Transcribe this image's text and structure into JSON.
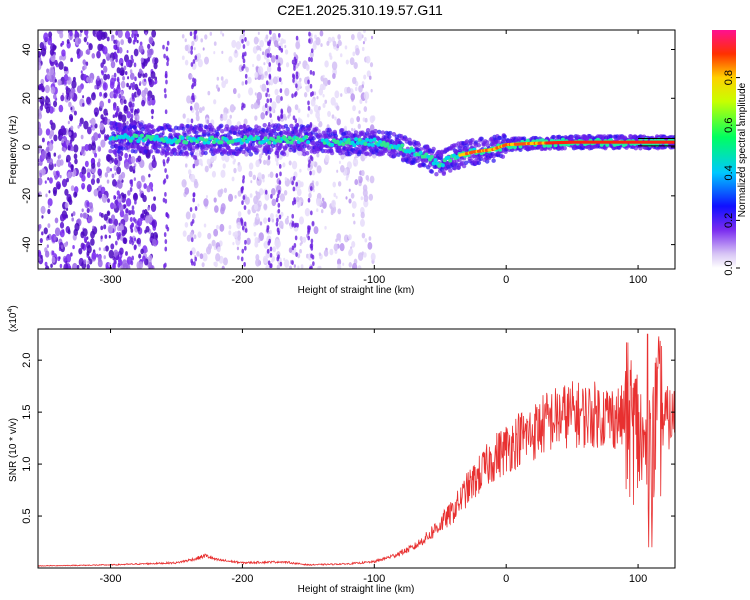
{
  "title": "C2E1.2025.310.19.57.G11",
  "colors": {
    "snr_line": "#e83030",
    "frame": "#000000",
    "scatter_light": "#c8a8f0",
    "scatter_dark": "#5a10d0"
  },
  "chart_data": [
    {
      "type": "heatmap",
      "name": "spectrogram",
      "xlabel": "Height of straight line (km)",
      "ylabel": "Frequency (Hz)",
      "xlim": [
        -355,
        128
      ],
      "ylim": [
        -50,
        48
      ],
      "x_ticks": [
        -300,
        -200,
        -100,
        0,
        100
      ],
      "y_ticks": [
        -40,
        -20,
        0,
        20,
        40
      ],
      "colorbar": {
        "label": "Normalized spectral amplitude",
        "range": [
          0,
          1
        ],
        "ticks": [
          "0.0",
          "0.2",
          "0.4",
          "0.6",
          "0.8"
        ],
        "tick_values": [
          0.0,
          0.2,
          0.4,
          0.6,
          0.8
        ]
      },
      "ridge_center_hz": {
        "x": [
          -300,
          -250,
          -200,
          -150,
          -130,
          -100,
          -80,
          -60,
          -50,
          -40,
          -25,
          -10,
          0,
          20,
          50,
          80,
          100,
          128
        ],
        "y": [
          4,
          3,
          3,
          3,
          2,
          2,
          0,
          -4,
          -7,
          -4,
          -2,
          -1,
          1,
          1.5,
          2,
          2,
          2,
          2
        ]
      }
    },
    {
      "type": "line",
      "name": "snr",
      "xlabel": "Height of straight line (km)",
      "ylabel": "SNR (10 * v/v)",
      "y_multiplier": "(x10",
      "y_multiplier_exp": "4",
      "xlim": [
        -355,
        128
      ],
      "ylim": [
        0.0,
        2.3
      ],
      "x_ticks": [
        -300,
        -200,
        -100,
        0,
        100
      ],
      "y_ticks": [
        "0.5",
        "1.0",
        "1.5",
        "2.0"
      ],
      "y_tick_values": [
        0.5,
        1.0,
        1.5,
        2.0
      ],
      "series": [
        {
          "name": "SNR",
          "x": [
            -355,
            -300,
            -250,
            -235,
            -228,
            -220,
            -200,
            -170,
            -150,
            -120,
            -100,
            -85,
            -70,
            -60,
            -50,
            -40,
            -30,
            -20,
            -10,
            0,
            10,
            20,
            30,
            40,
            50,
            60,
            70,
            80,
            90,
            100,
            105,
            110,
            115,
            128
          ],
          "y": [
            0.02,
            0.03,
            0.05,
            0.09,
            0.12,
            0.08,
            0.05,
            0.06,
            0.03,
            0.04,
            0.06,
            0.12,
            0.2,
            0.3,
            0.42,
            0.55,
            0.75,
            0.9,
            1.05,
            1.15,
            1.25,
            1.3,
            1.4,
            1.45,
            1.48,
            1.47,
            1.48,
            1.46,
            1.44,
            1.3,
            1.1,
            1.2,
            1.45,
            1.43
          ]
        }
      ]
    }
  ]
}
